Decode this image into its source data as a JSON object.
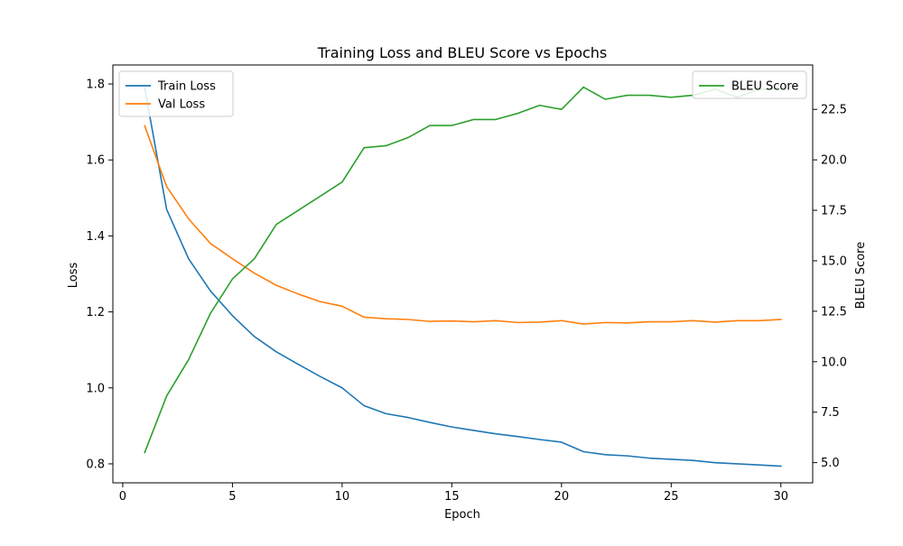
{
  "chart_data": {
    "type": "line",
    "title": "Training Loss and BLEU Score vs Epochs",
    "xlabel": "Epoch",
    "ylabel": "Loss",
    "ylabel_right": "BLEU Score",
    "xlim": [
      -0.45,
      31.45
    ],
    "ylim": [
      0.75,
      1.85
    ],
    "ylim_right": [
      4.0,
      24.7
    ],
    "x_ticks": [
      0,
      5,
      10,
      15,
      20,
      25,
      30
    ],
    "y_ticks": [
      0.8,
      1.0,
      1.2,
      1.4,
      1.6,
      1.8
    ],
    "y_ticks_right": [
      5.0,
      7.5,
      10.0,
      12.5,
      15.0,
      17.5,
      20.0,
      22.5
    ],
    "x": [
      1,
      2,
      3,
      4,
      5,
      6,
      7,
      8,
      9,
      10,
      11,
      12,
      13,
      14,
      15,
      16,
      17,
      18,
      19,
      20,
      21,
      22,
      23,
      24,
      25,
      26,
      27,
      28,
      29,
      30
    ],
    "grid": false,
    "series": [
      {
        "name": "Train Loss",
        "axis": "left",
        "color": "#1f77b4",
        "values": [
          1.79,
          1.47,
          1.34,
          1.255,
          1.19,
          1.135,
          1.095,
          1.062,
          1.03,
          1.0,
          0.953,
          0.932,
          0.922,
          0.909,
          0.897,
          0.888,
          0.879,
          0.872,
          0.864,
          0.857,
          0.832,
          0.824,
          0.821,
          0.815,
          0.812,
          0.809,
          0.803,
          0.8,
          0.797,
          0.794
        ]
      },
      {
        "name": "Val Loss",
        "axis": "left",
        "color": "#ff7f0e",
        "values": [
          1.69,
          1.53,
          1.445,
          1.38,
          1.34,
          1.302,
          1.27,
          1.247,
          1.227,
          1.215,
          1.186,
          1.182,
          1.18,
          1.175,
          1.176,
          1.174,
          1.177,
          1.172,
          1.173,
          1.177,
          1.168,
          1.172,
          1.171,
          1.174,
          1.174,
          1.177,
          1.173,
          1.177,
          1.177,
          1.18
        ]
      },
      {
        "name": "BLEU Score",
        "axis": "right",
        "color": "#2ca02c",
        "values": [
          5.5,
          8.3,
          10.1,
          12.4,
          14.1,
          15.1,
          16.8,
          17.5,
          18.2,
          18.9,
          20.6,
          20.7,
          21.1,
          21.7,
          21.7,
          22.0,
          22.0,
          22.3,
          22.7,
          22.5,
          23.6,
          23.0,
          23.2,
          23.2,
          23.1,
          23.2,
          23.5,
          23.1,
          23.5,
          23.5
        ]
      }
    ],
    "legend_left_position": "upper-left",
    "legend_right_position": "upper-right"
  }
}
